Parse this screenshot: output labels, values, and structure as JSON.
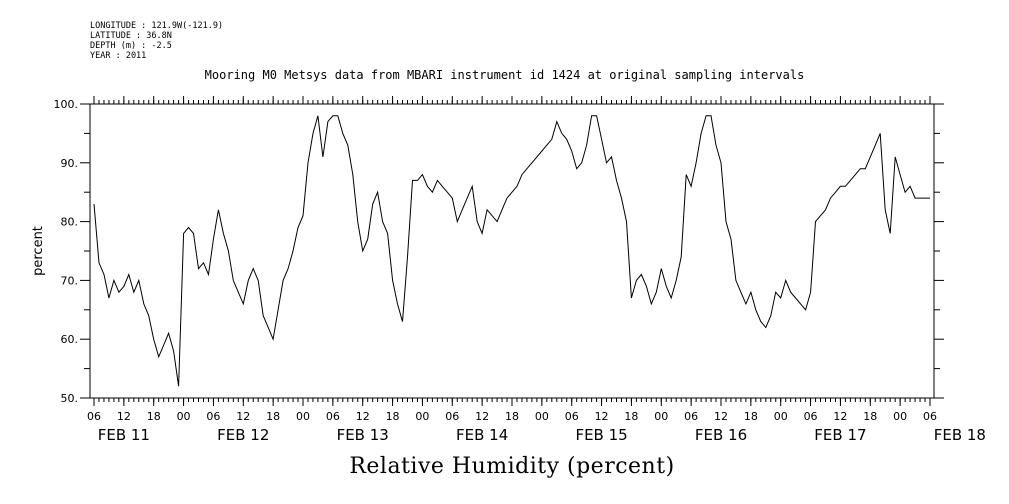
{
  "header": {
    "longitude": "LONGITUDE : 121.9W(-121.9)",
    "latitude": "LATITUDE : 36.8N",
    "depth": "DEPTH (m) : -2.5",
    "year": "YEAR : 2011"
  },
  "chart_data": {
    "type": "line",
    "title": "Mooring M0 Metsys data from MBARI instrument id 1424 at original sampling intervals",
    "xlabel": "Relative Humidity (percent)",
    "ylabel": "percent",
    "ylim": [
      50,
      100
    ],
    "yticks": [
      "50.",
      "60.",
      "70.",
      "80.",
      "90.",
      "100."
    ],
    "xlim_hours": [
      0,
      168
    ],
    "hour_tick_labels": [
      "06",
      "12",
      "18",
      "00",
      "06",
      "12",
      "18",
      "00",
      "06",
      "12",
      "18",
      "00",
      "06",
      "12",
      "18",
      "00",
      "06",
      "12",
      "18",
      "00",
      "06",
      "12",
      "18",
      "00",
      "06",
      "12",
      "18",
      "00",
      "06"
    ],
    "date_labels": [
      "FEB 11",
      "FEB 12",
      "FEB 13",
      "FEB 14",
      "FEB 15",
      "FEB 16",
      "FEB 17",
      "FEB 18"
    ],
    "grid": false,
    "series": [
      {
        "x_hours": [
          0,
          1,
          2,
          3,
          4,
          5,
          6,
          7,
          8,
          9,
          10,
          11,
          12,
          13,
          14,
          15,
          16,
          17,
          18,
          19,
          20,
          21,
          22,
          23,
          24,
          25,
          26,
          27,
          28,
          29,
          30,
          31,
          32,
          33,
          34,
          35,
          36,
          37,
          38,
          39,
          40,
          41,
          42,
          43,
          44,
          45,
          46,
          47,
          48,
          49,
          50,
          51,
          52,
          53,
          54,
          55,
          56,
          57,
          58,
          59,
          60,
          61,
          62,
          63,
          64,
          65,
          66,
          67,
          68,
          69,
          70,
          71,
          72,
          73,
          74,
          75,
          76,
          77,
          78,
          79,
          80,
          81,
          82,
          83,
          84,
          85,
          86,
          87,
          88,
          89,
          90,
          91,
          92,
          93,
          94,
          95,
          96,
          97,
          98,
          99,
          100,
          101,
          102,
          103,
          104,
          105,
          106,
          107,
          108,
          109,
          110,
          111,
          112,
          113,
          114,
          115,
          116,
          117,
          118,
          119,
          120,
          121,
          122,
          123,
          124,
          125,
          126,
          127,
          128,
          129,
          130,
          131,
          132,
          133,
          134,
          135,
          136,
          137,
          138,
          139,
          140,
          141,
          142,
          143,
          144,
          145,
          146,
          147,
          148,
          149,
          150,
          151,
          152,
          153,
          154,
          155,
          156,
          157,
          158,
          159,
          160,
          161,
          162,
          163,
          164,
          165,
          166,
          167,
          168
        ],
        "values": [
          83,
          73,
          71,
          67,
          70,
          68,
          69,
          71,
          68,
          70,
          66,
          64,
          60,
          57,
          59,
          61,
          58,
          52,
          78,
          79,
          78,
          72,
          73,
          71,
          77,
          82,
          78,
          75,
          70,
          68,
          66,
          70,
          72,
          70,
          64,
          62,
          60,
          65,
          70,
          72,
          75,
          79,
          81,
          90,
          95,
          98,
          91,
          97,
          98,
          98,
          95,
          93,
          88,
          80,
          75,
          77,
          83,
          85,
          80,
          78,
          70,
          66,
          63,
          74,
          87,
          87,
          88,
          86,
          85,
          87,
          86,
          85,
          84,
          80,
          82,
          84,
          86,
          80,
          78,
          82,
          81,
          80,
          82,
          84,
          85,
          86,
          88,
          89,
          90,
          91,
          92,
          93,
          94,
          97,
          95,
          94,
          92,
          89,
          90,
          93,
          98,
          98,
          94,
          90,
          91,
          87,
          84,
          80,
          67,
          70,
          71,
          69,
          66,
          68,
          72,
          69,
          67,
          70,
          74,
          88,
          86,
          90,
          95,
          98,
          98,
          93,
          90,
          80,
          77,
          70,
          68,
          66,
          68,
          65,
          63,
          62,
          64,
          68,
          67,
          70,
          68,
          67,
          66,
          65,
          68,
          80,
          81,
          82,
          84,
          85,
          86,
          86,
          87,
          88,
          89,
          89,
          91,
          93,
          95,
          82,
          78,
          91,
          88,
          85,
          86,
          84,
          84,
          84,
          84
        ]
      }
    ]
  }
}
